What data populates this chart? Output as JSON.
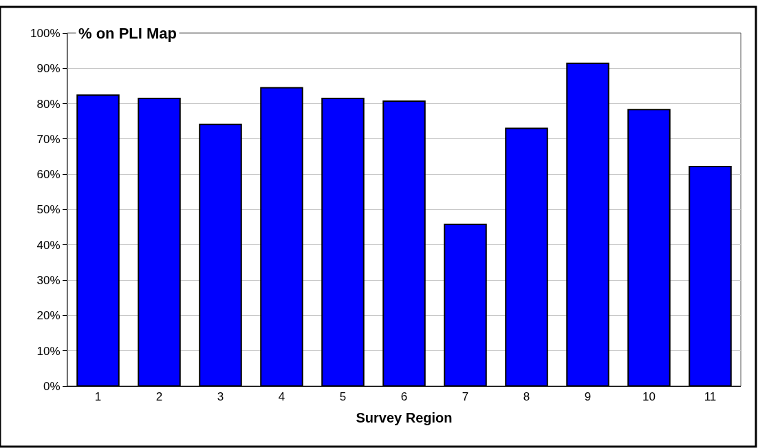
{
  "chart_data": {
    "type": "bar",
    "title": "% on PLI Map",
    "xlabel": "Survey Region",
    "categories": [
      "1",
      "2",
      "3",
      "4",
      "5",
      "6",
      "7",
      "8",
      "9",
      "10",
      "11"
    ],
    "values": [
      82.4,
      81.5,
      74.1,
      84.5,
      81.5,
      80.7,
      45.8,
      73.0,
      91.4,
      78.3,
      62.2
    ],
    "color": "#0000ff",
    "ylim": [
      0,
      100
    ],
    "yticks": [
      {
        "value": 0,
        "label": "0%"
      },
      {
        "value": 10,
        "label": "10%"
      },
      {
        "value": 20,
        "label": "20%"
      },
      {
        "value": 30,
        "label": "30%"
      },
      {
        "value": 40,
        "label": "40%"
      },
      {
        "value": 50,
        "label": "50%"
      },
      {
        "value": 60,
        "label": "60%"
      },
      {
        "value": 70,
        "label": "70%"
      },
      {
        "value": 80,
        "label": "80%"
      },
      {
        "value": 90,
        "label": "90%"
      },
      {
        "value": 100,
        "label": "100%"
      }
    ],
    "grid": "y",
    "legend": false
  }
}
